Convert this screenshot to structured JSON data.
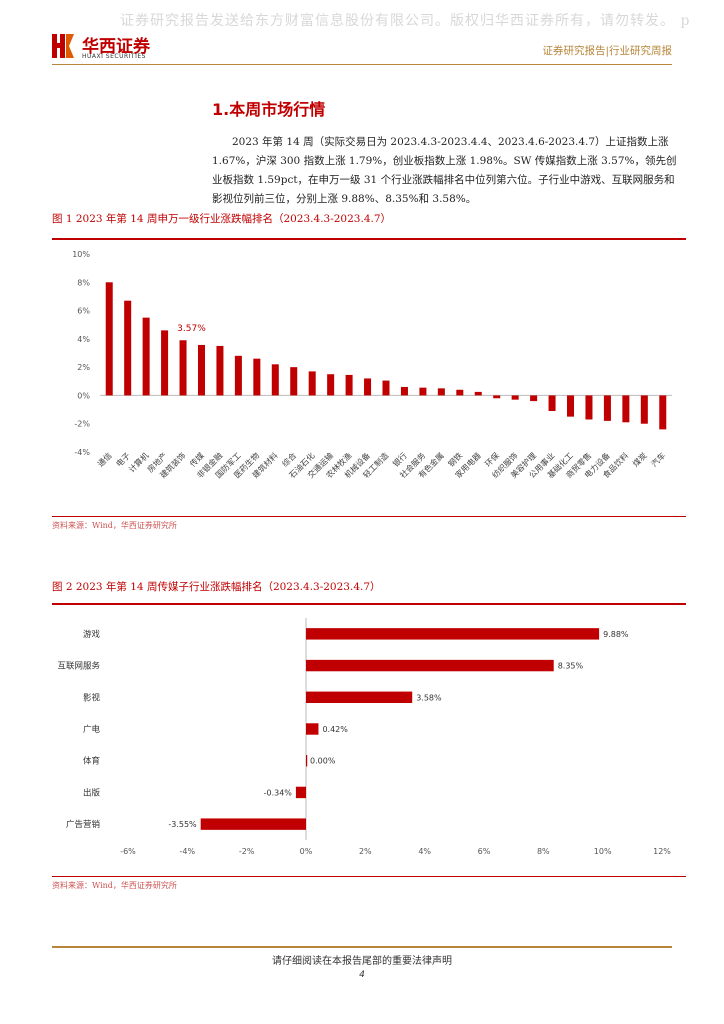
{
  "watermark": "证券研究报告发送给东方财富信息股份有限公司。版权归华西证券所有，请勿转发。 p",
  "logo": {
    "cn": "华西证券",
    "en": "HUAXI SECURITIES"
  },
  "header_right": "证券研究报告|行业研究周报",
  "section_title": "1.本周市场行情",
  "paragraph": "2023 年第 14 周（实际交易日为 2023.4.3-2023.4.4、2023.4.6-2023.4.7）上证指数上涨 1.67%，沪深 300 指数上涨 1.79%，创业板指数上涨 1.98%。SW 传媒指数上涨 3.57%，领先创业板指数 1.59pct，在申万一级 31 个行业涨跌幅排名中位列第六位。子行业中游戏、互联网服务和影视位列前三位，分别上涨 9.88%、8.35%和 3.58%。",
  "fig1": {
    "title": "图 1 2023 年第 14 周申万一级行业涨跌幅排名（2023.4.3-2023.4.7）",
    "source": "资料来源：Wind，华西证券研究所"
  },
  "fig2": {
    "title": "图 2 2023 年第 14 周传媒子行业涨跌幅排名（2023.4.3-2023.4.7）",
    "source": "资料来源：Wind，华西证券研究所"
  },
  "footer": {
    "text": "请仔细阅读在本报告尾部的重要法律声明",
    "page": "4"
  },
  "colors": {
    "bar": "#c00000",
    "accent": "#c00000",
    "gold": "#b8863a"
  },
  "chart_data": [
    {
      "type": "bar",
      "title": "",
      "categories": [
        "通信",
        "电子",
        "计算机",
        "房地产",
        "建筑装饰",
        "传媒",
        "非银金融",
        "国防军工",
        "医药生物",
        "建筑材料",
        "综合",
        "石油石化",
        "交通运输",
        "农林牧渔",
        "机械设备",
        "轻工制造",
        "银行",
        "社会服务",
        "有色金属",
        "钢铁",
        "家用电器",
        "环保",
        "纺织服饰",
        "美容护理",
        "公用事业",
        "基础化工",
        "商贸零售",
        "电力设备",
        "食品饮料",
        "煤炭",
        "汽车"
      ],
      "values": [
        8.0,
        6.7,
        5.5,
        4.6,
        3.9,
        3.57,
        3.5,
        2.8,
        2.6,
        2.2,
        2.0,
        1.7,
        1.5,
        1.45,
        1.2,
        1.05,
        0.6,
        0.55,
        0.5,
        0.4,
        0.25,
        -0.2,
        -0.3,
        -0.4,
        -1.1,
        -1.5,
        -1.7,
        -1.8,
        -1.9,
        -2.0,
        -2.4
      ],
      "annotations": [
        {
          "category": "传媒",
          "label": "3.57%"
        }
      ],
      "ylim": [
        -4,
        10
      ],
      "yticks": [
        "-4%",
        "-2%",
        "0%",
        "2%",
        "4%",
        "6%",
        "8%",
        "10%"
      ],
      "ytick_values": [
        -4,
        -2,
        0,
        2,
        4,
        6,
        8,
        10
      ],
      "grid": false
    },
    {
      "type": "bar",
      "orientation": "horizontal",
      "title": "",
      "categories": [
        "游戏",
        "互联网服务",
        "影视",
        "广电",
        "体育",
        "出版",
        "广告营销"
      ],
      "values": [
        9.88,
        8.35,
        3.58,
        0.42,
        0.0,
        -0.34,
        -3.55
      ],
      "data_labels": [
        "9.88%",
        "8.35%",
        "3.58%",
        "0.42%",
        "0.00%",
        "-0.34%",
        "-3.55%"
      ],
      "xlim": [
        -6,
        12
      ],
      "xticks": [
        "-6%",
        "-4%",
        "-2%",
        "0%",
        "2%",
        "4%",
        "6%",
        "8%",
        "10%",
        "12%"
      ],
      "xtick_values": [
        -6,
        -4,
        -2,
        0,
        2,
        4,
        6,
        8,
        10,
        12
      ],
      "grid": false
    }
  ]
}
